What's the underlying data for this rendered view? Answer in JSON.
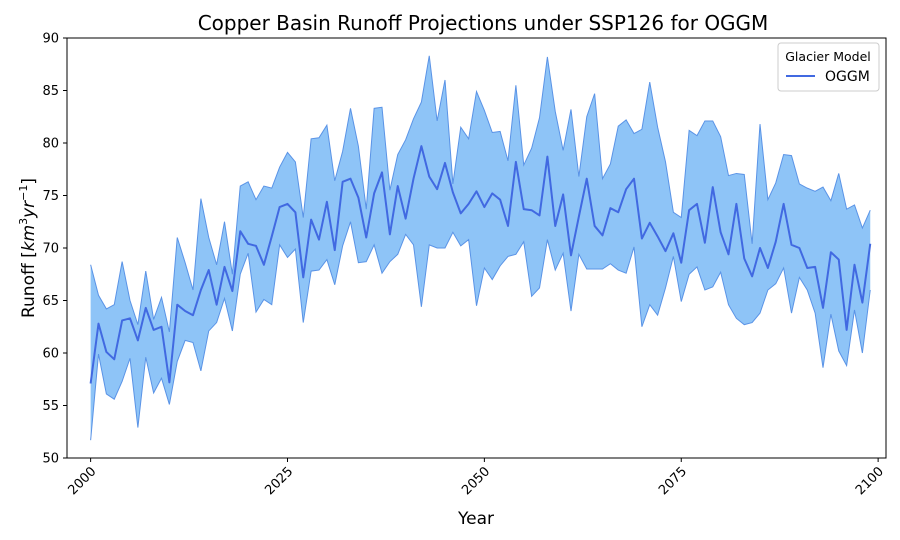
{
  "chart_data": {
    "type": "area",
    "title": "Copper Basin Runoff Projections under SSP126 for OGGM",
    "xlabel": "Year",
    "ylabel_main": "Runoff [",
    "ylabel_unit_base": "km",
    "ylabel_unit_exp1": "3",
    "ylabel_unit_mid": "yr",
    "ylabel_unit_exp2": "−1",
    "ylabel_close": "]",
    "xlim": [
      1997,
      2101
    ],
    "ylim": [
      50,
      90
    ],
    "xticks": [
      2000,
      2025,
      2050,
      2075,
      2100
    ],
    "yticks": [
      50,
      55,
      60,
      65,
      70,
      75,
      80,
      85,
      90
    ],
    "grid": false,
    "legend": {
      "title": "Glacier Model",
      "position": "top-right",
      "entries": [
        "OGGM"
      ]
    },
    "colors": {
      "line": "#4169e1",
      "band_fill": "#8ec4f7",
      "band_edge": "#5a93e6"
    },
    "x": [
      2000,
      2001,
      2002,
      2003,
      2004,
      2005,
      2006,
      2007,
      2008,
      2009,
      2010,
      2011,
      2012,
      2013,
      2014,
      2015,
      2016,
      2017,
      2018,
      2019,
      2020,
      2021,
      2022,
      2023,
      2024,
      2025,
      2026,
      2027,
      2028,
      2029,
      2030,
      2031,
      2032,
      2033,
      2034,
      2035,
      2036,
      2037,
      2038,
      2039,
      2040,
      2041,
      2042,
      2043,
      2044,
      2045,
      2046,
      2047,
      2048,
      2049,
      2050,
      2051,
      2052,
      2053,
      2054,
      2055,
      2056,
      2057,
      2058,
      2059,
      2060,
      2061,
      2062,
      2063,
      2064,
      2065,
      2066,
      2067,
      2068,
      2069,
      2070,
      2071,
      2072,
      2073,
      2074,
      2075,
      2076,
      2077,
      2078,
      2079,
      2080,
      2081,
      2082,
      2083,
      2084,
      2085,
      2086,
      2087,
      2088,
      2089,
      2090,
      2091,
      2092,
      2093,
      2094,
      2095,
      2096,
      2097,
      2098,
      2099
    ],
    "series": [
      {
        "name": "OGGM",
        "mean": [
          57.1,
          62.8,
          60.1,
          59.4,
          63.1,
          63.3,
          61.2,
          64.3,
          62.2,
          62.5,
          57.2,
          64.6,
          64.0,
          63.6,
          66.0,
          67.9,
          64.6,
          68.2,
          65.9,
          71.6,
          70.4,
          70.2,
          68.4,
          71.1,
          73.9,
          74.2,
          73.4,
          67.2,
          72.7,
          70.8,
          74.4,
          69.8,
          76.3,
          76.6,
          74.8,
          71.0,
          75.2,
          77.2,
          71.3,
          75.9,
          72.8,
          76.6,
          79.7,
          76.8,
          75.6,
          78.1,
          75.3,
          73.3,
          74.2,
          75.4,
          73.9,
          75.2,
          74.6,
          72.1,
          78.2,
          73.7,
          73.6,
          73.1,
          78.7,
          72.1,
          75.1,
          69.3,
          73.0,
          76.6,
          72.1,
          71.2,
          73.8,
          73.4,
          75.6,
          76.6,
          70.9,
          72.4,
          71.1,
          69.7,
          71.4,
          68.6,
          73.6,
          74.2,
          70.5,
          75.8,
          71.5,
          69.4,
          74.2,
          69.0,
          67.3,
          70.0,
          68.1,
          70.6,
          74.2,
          70.3,
          70.0,
          68.1,
          68.2,
          64.3,
          69.6,
          68.9,
          62.2,
          68.4,
          64.8,
          70.4
        ],
        "upper": [
          68.4,
          65.5,
          64.2,
          64.6,
          68.7,
          65.0,
          62.7,
          67.8,
          63.2,
          65.3,
          62.0,
          71.0,
          68.6,
          66.0,
          74.7,
          71.0,
          68.4,
          72.5,
          67.5,
          75.9,
          76.3,
          74.6,
          75.9,
          75.7,
          77.7,
          79.1,
          78.2,
          72.9,
          80.4,
          80.5,
          81.7,
          76.4,
          79.2,
          83.3,
          79.7,
          73.7,
          83.3,
          83.4,
          75.5,
          78.9,
          80.3,
          82.3,
          83.9,
          88.3,
          82.1,
          86.0,
          76.1,
          81.5,
          80.4,
          84.9,
          83.1,
          81.0,
          81.1,
          78.3,
          85.5,
          77.9,
          79.5,
          82.4,
          88.2,
          83.0,
          79.3,
          83.2,
          76.8,
          82.5,
          84.7,
          76.6,
          78.0,
          81.6,
          82.2,
          80.9,
          81.3,
          85.8,
          81.5,
          78.2,
          73.4,
          72.9,
          81.2,
          80.7,
          82.1,
          82.1,
          80.6,
          76.9,
          77.1,
          77.0,
          70.4,
          81.8,
          74.6,
          76.2,
          78.9,
          78.8,
          76.1,
          75.7,
          75.4,
          75.8,
          74.5,
          77.1,
          73.7,
          74.1,
          71.9,
          73.6
        ],
        "lower": [
          51.7,
          59.9,
          56.1,
          55.6,
          57.3,
          59.5,
          52.9,
          59.6,
          56.2,
          57.6,
          55.1,
          59.2,
          61.2,
          61.0,
          58.3,
          62.1,
          62.9,
          65.2,
          62.1,
          67.5,
          69.5,
          63.9,
          65.1,
          64.6,
          70.3,
          69.1,
          69.9,
          62.9,
          67.8,
          67.9,
          68.9,
          66.5,
          70.2,
          72.5,
          68.6,
          68.7,
          70.3,
          67.6,
          68.7,
          69.4,
          71.3,
          70.3,
          64.4,
          70.3,
          70.0,
          70.0,
          71.5,
          70.2,
          70.8,
          64.5,
          68.1,
          67.0,
          68.3,
          69.2,
          69.4,
          70.6,
          65.4,
          66.2,
          70.8,
          67.9,
          69.5,
          64.0,
          69.4,
          68.0,
          68.0,
          68.0,
          68.5,
          67.9,
          67.6,
          70.1,
          62.5,
          64.6,
          63.6,
          66.2,
          69.2,
          64.9,
          67.5,
          68.2,
          66.0,
          66.3,
          67.7,
          64.6,
          63.3,
          62.7,
          62.9,
          63.8,
          66.0,
          66.6,
          68.1,
          63.8,
          67.2,
          66.0,
          63.8,
          58.6,
          63.7,
          60.2,
          58.8,
          64.1,
          60.0,
          66.0
        ]
      }
    ]
  }
}
